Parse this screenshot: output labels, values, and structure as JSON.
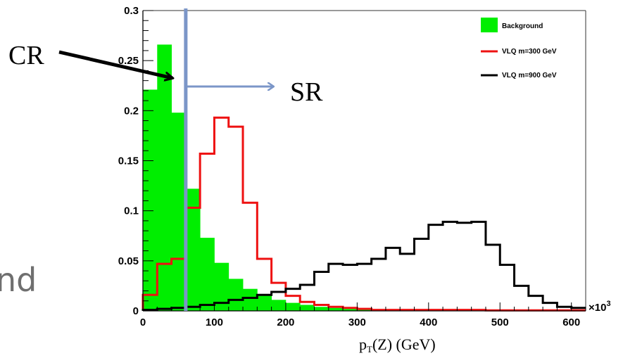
{
  "chart_data": {
    "type": "histogram",
    "xlabel": "p_T(Z) (GeV)",
    "xlabel_main": "p",
    "xlabel_sub": "T",
    "xlabel_rest": "(Z) (GeV)",
    "x_exponent_base": "×10",
    "x_exponent_power": "3",
    "xlim": [
      0,
      620
    ],
    "ylim": [
      0,
      0.3
    ],
    "xticks": [
      0,
      100,
      200,
      300,
      400,
      500,
      600
    ],
    "xtick_labels": [
      "0",
      "100",
      "200",
      "300",
      "400",
      "500",
      "600"
    ],
    "yticks": [
      0,
      0.05,
      0.1,
      0.15,
      0.2,
      0.25,
      0.3
    ],
    "ytick_labels": [
      "0",
      "0.05",
      "0.1",
      "0.15",
      "0.2",
      "0.25",
      "0.3"
    ],
    "bin_edges": [
      0,
      20,
      40,
      60,
      80,
      100,
      120,
      140,
      160,
      180,
      200,
      220,
      240,
      260,
      280,
      300,
      320,
      340,
      360,
      380,
      400,
      420,
      440,
      460,
      480,
      500,
      520,
      540,
      560,
      580,
      600,
      620
    ],
    "legend_position": "top-right",
    "series": [
      {
        "name": "Background",
        "style": "filled",
        "color": "#00ee00",
        "values": [
          0.221,
          0.266,
          0.198,
          0.122,
          0.073,
          0.048,
          0.032,
          0.022,
          0.016,
          0.011,
          0.008,
          0.006,
          0.004,
          0.003,
          0.002,
          0.002,
          0.001,
          0.001,
          0.001,
          0.001,
          0.001,
          0.001,
          0.0005,
          0.0005,
          0.0005,
          0.0005,
          0.0,
          0.0,
          0.0,
          0.0,
          0.0
        ]
      },
      {
        "name": "VLQ m=300 GeV",
        "style": "step",
        "color": "#ee1111",
        "values": [
          0.016,
          0.047,
          0.052,
          0.103,
          0.157,
          0.193,
          0.184,
          0.108,
          0.052,
          0.028,
          0.015,
          0.009,
          0.006,
          0.004,
          0.003,
          0.002,
          0.001,
          0.001,
          0.001,
          0.001,
          0.001,
          0.001,
          0.001,
          0.001,
          0.0005,
          0.0005,
          0.0005,
          0.0005,
          0.0005,
          0.0005,
          0.0005
        ]
      },
      {
        "name": "VLQ m=900 GeV",
        "style": "step",
        "color": "#000000",
        "values": [
          0.001,
          0.002,
          0.003,
          0.004,
          0.006,
          0.008,
          0.011,
          0.013,
          0.016,
          0.019,
          0.022,
          0.026,
          0.039,
          0.047,
          0.046,
          0.047,
          0.052,
          0.063,
          0.057,
          0.072,
          0.086,
          0.089,
          0.088,
          0.089,
          0.066,
          0.046,
          0.025,
          0.015,
          0.008,
          0.004,
          0.003
        ]
      }
    ]
  },
  "annotations": {
    "cr_label": "CR",
    "sr_label": "SR",
    "cut_value": 60,
    "cut_color": "#7b96c8",
    "arrow_color": "#000000"
  },
  "background_fragment": {
    "text": "nd"
  }
}
